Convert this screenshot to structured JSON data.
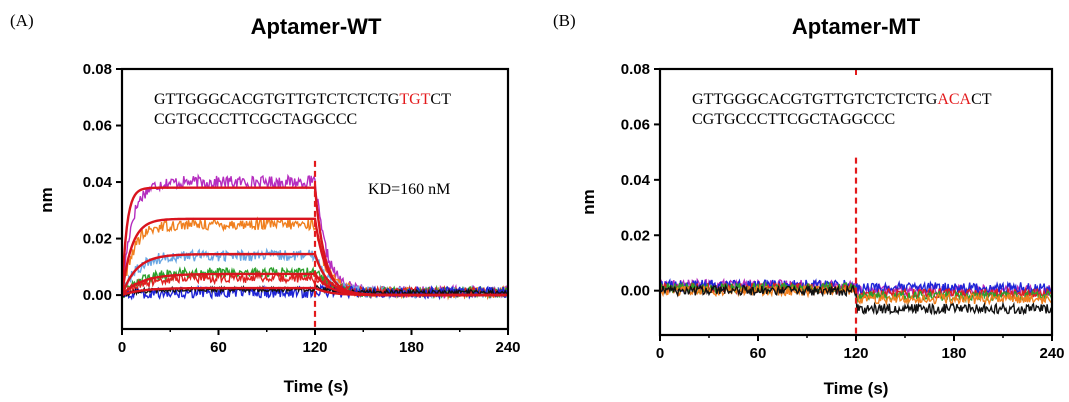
{
  "chart_data": [
    {
      "type": "line",
      "panel_label": "(A)",
      "title": "Aptamer-WT",
      "xlabel": "Time (s)",
      "ylabel": "nm",
      "xlim": [
        0,
        240
      ],
      "ylim": [
        -0.012,
        0.08
      ],
      "xticks": [
        "0",
        "60",
        "120",
        "180",
        "240"
      ],
      "yticks": [
        "0.00",
        "0.02",
        "0.04",
        "0.06",
        "0.08"
      ],
      "sequence": {
        "line1_prefix": "GTTGGGCACGTGTTGTCTCTCTG",
        "line1_highlight": "TGT",
        "line1_suffix": "CT",
        "line2": "CGTGCCCTTCGCTAGGCCC"
      },
      "annotation": "KD=160 nM",
      "dissociation_start": 120,
      "highlight_color": "#e31a1c",
      "series": [
        {
          "color": "#b52dbf",
          "plateau": 0.04,
          "tau_on": 6,
          "tau_off": 7,
          "noise": 0.0022
        },
        {
          "color": "#f07f1e",
          "plateau": 0.025,
          "tau_on": 7,
          "tau_off": 7,
          "noise": 0.002
        },
        {
          "color": "#6ba7e3",
          "plateau": 0.014,
          "tau_on": 9,
          "tau_off": 8,
          "noise": 0.002
        },
        {
          "color": "#2ca02c",
          "plateau": 0.008,
          "tau_on": 12,
          "tau_off": 9,
          "noise": 0.0018
        },
        {
          "color": "#e02020",
          "plateau": 0.006,
          "tau_on": 12,
          "tau_off": 9,
          "noise": 0.0017
        },
        {
          "color": "#1f25d6",
          "plateau": 0.001,
          "tau_on": 10,
          "tau_off": 8,
          "noise": 0.002
        },
        {
          "color": "#111111",
          "plateau": 0.002,
          "tau_on": 10,
          "tau_off": 8,
          "noise": 0.0008
        }
      ],
      "fits": [
        {
          "color": "#d9141e",
          "plateau": 0.038,
          "tau_on": 3,
          "tau_off": 6
        },
        {
          "color": "#d9141e",
          "plateau": 0.027,
          "tau_on": 6,
          "tau_off": 7
        },
        {
          "color": "#d9141e",
          "plateau": 0.0145,
          "tau_on": 9,
          "tau_off": 8
        },
        {
          "color": "#d9141e",
          "plateau": 0.0075,
          "tau_on": 12,
          "tau_off": 9
        },
        {
          "color": "#d9141e",
          "plateau": 0.0025,
          "tau_on": 12,
          "tau_off": 9
        }
      ]
    },
    {
      "type": "line",
      "panel_label": "(B)",
      "title": "Aptamer-MT",
      "xlabel": "Time (s)",
      "ylabel": "nm",
      "xlim": [
        0,
        240
      ],
      "ylim": [
        -0.016,
        0.08
      ],
      "xticks": [
        "0",
        "60",
        "120",
        "180",
        "240"
      ],
      "yticks": [
        "0.00",
        "0.02",
        "0.04",
        "0.06",
        "0.08"
      ],
      "sequence": {
        "line1_prefix": "GTTGGGCACGTGTTGTCTCTCTG",
        "line1_highlight": "ACA",
        "line1_suffix": "CT",
        "line2": "CGTGCCCTTCGCTAGGCCC"
      },
      "dissociation_start": 120,
      "highlight_color": "#e31a1c",
      "series": [
        {
          "color": "#b52dbf",
          "assoc": 0.002,
          "dissoc": 0.0,
          "noise": 0.002
        },
        {
          "color": "#1f25d6",
          "assoc": 0.002,
          "dissoc": 0.001,
          "noise": 0.002
        },
        {
          "color": "#e02020",
          "assoc": 0.001,
          "dissoc": -0.001,
          "noise": 0.0018
        },
        {
          "color": "#2ca02c",
          "assoc": 0.001,
          "dissoc": -0.002,
          "noise": 0.0018
        },
        {
          "color": "#f07f1e",
          "assoc": 0.0,
          "dissoc": -0.003,
          "noise": 0.0018
        },
        {
          "color": "#111111",
          "assoc": 0.0,
          "dissoc": -0.0065,
          "noise": 0.0018
        }
      ]
    }
  ]
}
